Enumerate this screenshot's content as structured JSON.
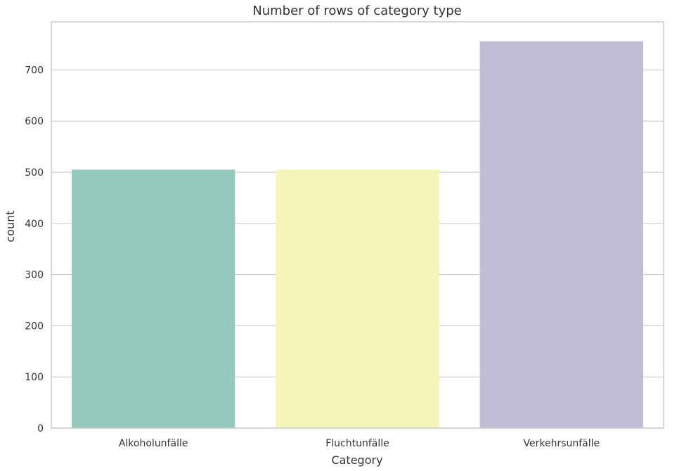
{
  "chart_data": {
    "type": "bar",
    "title": "Number of rows of category type",
    "xlabel": "Category",
    "ylabel": "count",
    "categories": [
      "Alkoholunfälle",
      "Fluchtunfälle",
      "Verkehrsunfälle"
    ],
    "values": [
      505,
      505,
      756
    ],
    "colors": [
      "#96c9be",
      "#f5f5ba",
      "#c1bdd6"
    ],
    "ylim": [
      0,
      794
    ],
    "yticks": [
      0,
      100,
      200,
      300,
      400,
      500,
      600,
      700
    ],
    "grid": true,
    "gridColor": "#cfcfcf",
    "frameColor": "#cccccc"
  }
}
